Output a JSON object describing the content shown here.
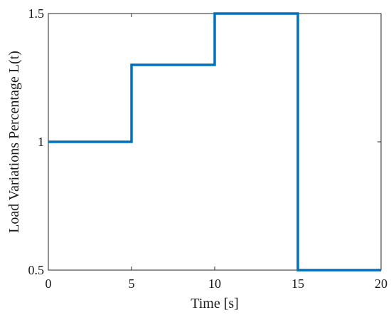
{
  "chart_data": {
    "type": "line",
    "step": true,
    "xlabel": "Time [s]",
    "ylabel": "Load Variations Percentage L(t)",
    "xlim": [
      0,
      20
    ],
    "ylim": [
      0.5,
      1.5
    ],
    "xticks": [
      0,
      5,
      10,
      15,
      20
    ],
    "yticks": [
      0.5,
      1,
      1.5
    ],
    "xtick_labels": [
      "0",
      "5",
      "10",
      "15",
      "20"
    ],
    "ytick_labels": [
      "0.5",
      "1",
      "1.5"
    ],
    "grid": false,
    "box": true,
    "series": [
      {
        "color": "#0072BD",
        "x": [
          0,
          5,
          5,
          10,
          10,
          15,
          15,
          20
        ],
        "y": [
          1.0,
          1.0,
          1.3,
          1.3,
          1.5,
          1.5,
          0.5,
          0.5
        ]
      }
    ]
  }
}
